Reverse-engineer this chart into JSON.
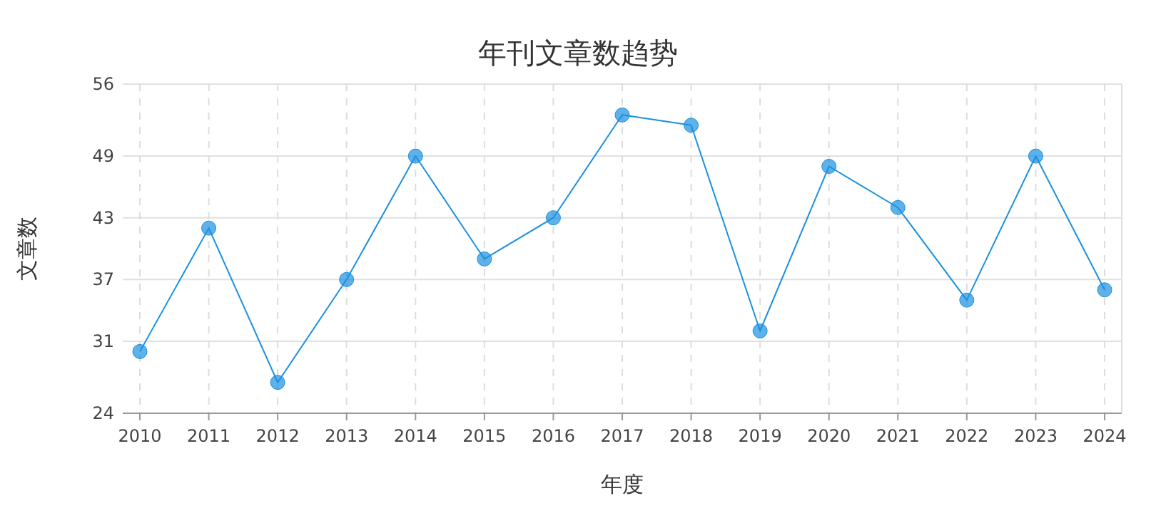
{
  "chart_data": {
    "type": "line",
    "title": "年刊文章数趋势",
    "xlabel": "年度",
    "ylabel": "文章数",
    "categories": [
      "2010",
      "2011",
      "2012",
      "2013",
      "2014",
      "2015",
      "2016",
      "2017",
      "2018",
      "2019",
      "2020",
      "2021",
      "2022",
      "2023",
      "2024"
    ],
    "series": [
      {
        "color": "#1a90e0",
        "values": [
          30,
          42,
          27,
          37,
          49,
          39,
          43,
          53,
          52,
          32,
          48,
          44,
          35,
          49,
          36
        ]
      }
    ],
    "marker": "circle",
    "line_style": "solid",
    "grid": true,
    "ylim": [
      24,
      56
    ],
    "yticks": [
      24,
      31,
      37,
      43,
      49,
      56
    ]
  }
}
